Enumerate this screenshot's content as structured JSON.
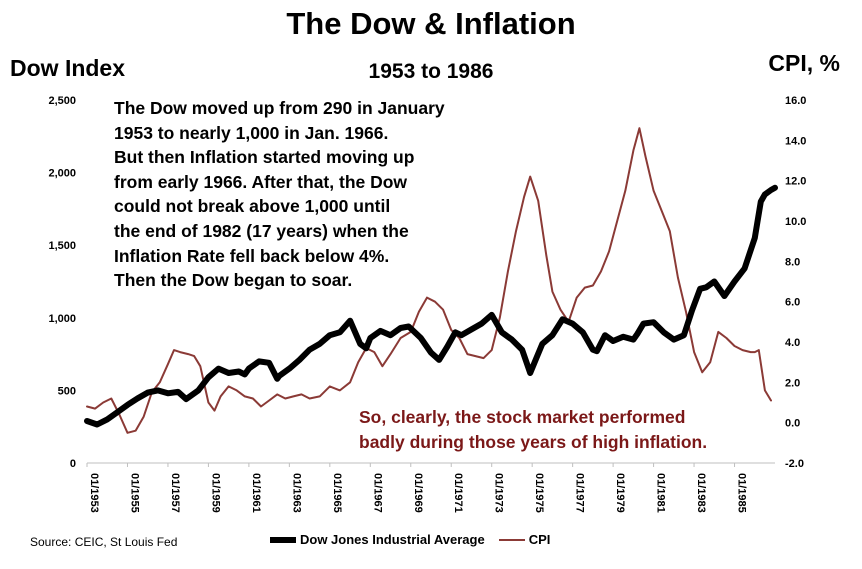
{
  "chart_data": {
    "type": "line",
    "title": "The Dow & Inflation",
    "subtitle": "1953 to 1986",
    "ylabel_left": "Dow Index",
    "ylabel_right": "CPI, %",
    "ylim_left": [
      0,
      2500
    ],
    "ylim_right": [
      -2.0,
      16.0
    ],
    "yticks_left": [
      "2,500",
      "2,000",
      "1,500",
      "1,000",
      "500",
      "0"
    ],
    "yticks_right": [
      "16.0",
      "14.0",
      "12.0",
      "10.0",
      "8.0",
      "6.0",
      "4.0",
      "2.0",
      "0.0",
      "-2.0"
    ],
    "xticks": [
      "01/1953",
      "01/1955",
      "01/1957",
      "01/1959",
      "01/1961",
      "01/1963",
      "01/1965",
      "01/1967",
      "01/1969",
      "01/1971",
      "01/1973",
      "01/1975",
      "01/1977",
      "01/1979",
      "01/1981",
      "01/1983",
      "01/1985"
    ],
    "xlim": [
      1953.0,
      1987.0
    ],
    "grid": false,
    "legend": "bottom",
    "series": [
      {
        "name": "Dow Jones Industrial Average",
        "axis": "left",
        "color": "#000000",
        "x": [
          1953.0,
          1953.5,
          1954.0,
          1954.5,
          1955.0,
          1955.5,
          1956.0,
          1956.5,
          1957.0,
          1957.5,
          1957.9,
          1958.5,
          1959.0,
          1959.5,
          1960.0,
          1960.5,
          1960.8,
          1961.0,
          1961.5,
          1962.0,
          1962.4,
          1962.5,
          1963.0,
          1963.5,
          1964.0,
          1964.5,
          1965.0,
          1965.5,
          1966.0,
          1966.5,
          1966.8,
          1967.0,
          1967.5,
          1968.0,
          1968.5,
          1968.9,
          1969.5,
          1970.0,
          1970.4,
          1970.8,
          1971.2,
          1971.5,
          1972.0,
          1972.5,
          1973.0,
          1973.5,
          1974.0,
          1974.5,
          1974.9,
          1975.2,
          1975.5,
          1976.0,
          1976.5,
          1977.0,
          1977.5,
          1978.0,
          1978.2,
          1978.6,
          1979.0,
          1979.5,
          1980.0,
          1980.2,
          1980.5,
          1981.0,
          1981.5,
          1982.0,
          1982.5,
          1982.9,
          1983.3,
          1983.6,
          1984.0,
          1984.5,
          1985.0,
          1985.5,
          1986.0,
          1986.3,
          1986.5,
          1986.8,
          1987.0
        ],
        "values": [
          289,
          265,
          300,
          350,
          400,
          445,
          485,
          500,
          480,
          490,
          440,
          500,
          590,
          650,
          620,
          630,
          610,
          650,
          700,
          690,
          580,
          600,
          650,
          710,
          780,
          820,
          880,
          900,
          980,
          820,
          790,
          860,
          910,
          880,
          930,
          940,
          860,
          760,
          710,
          800,
          900,
          880,
          920,
          960,
          1020,
          900,
          850,
          780,
          620,
          720,
          820,
          880,
          990,
          960,
          900,
          780,
          770,
          880,
          840,
          870,
          850,
          890,
          960,
          970,
          900,
          850,
          880,
          1050,
          1200,
          1210,
          1250,
          1150,
          1250,
          1340,
          1550,
          1800,
          1850,
          1880,
          1895
        ]
      },
      {
        "name": "CPI",
        "axis": "right",
        "color": "#8b3a36",
        "x": [
          1953.0,
          1953.4,
          1953.8,
          1954.2,
          1954.6,
          1955.0,
          1955.4,
          1955.8,
          1956.2,
          1956.6,
          1957.0,
          1957.3,
          1957.6,
          1958.0,
          1958.3,
          1958.6,
          1959.0,
          1959.3,
          1959.6,
          1960.0,
          1960.4,
          1960.8,
          1961.2,
          1961.6,
          1962.0,
          1962.4,
          1962.8,
          1963.2,
          1963.6,
          1964.0,
          1964.5,
          1965.0,
          1965.5,
          1966.0,
          1966.4,
          1966.8,
          1967.2,
          1967.6,
          1968.0,
          1968.5,
          1969.0,
          1969.4,
          1969.8,
          1970.2,
          1970.6,
          1971.0,
          1971.4,
          1971.8,
          1972.2,
          1972.6,
          1973.0,
          1973.4,
          1973.8,
          1974.2,
          1974.6,
          1974.9,
          1975.3,
          1975.7,
          1976.0,
          1976.4,
          1976.8,
          1977.2,
          1977.6,
          1978.0,
          1978.4,
          1978.8,
          1979.2,
          1979.6,
          1980.0,
          1980.3,
          1980.6,
          1981.0,
          1981.4,
          1981.8,
          1982.2,
          1982.6,
          1983.0,
          1983.4,
          1983.8,
          1984.2,
          1984.6,
          1985.0,
          1985.4,
          1985.8,
          1986.0,
          1986.2,
          1986.5,
          1986.8
        ],
        "values": [
          0.8,
          0.7,
          1.0,
          1.2,
          0.4,
          -0.5,
          -0.4,
          0.3,
          1.5,
          2.0,
          2.9,
          3.6,
          3.5,
          3.4,
          3.3,
          2.8,
          1.0,
          0.6,
          1.3,
          1.8,
          1.6,
          1.3,
          1.2,
          0.8,
          1.1,
          1.4,
          1.2,
          1.3,
          1.4,
          1.2,
          1.3,
          1.8,
          1.6,
          2.0,
          3.0,
          3.7,
          3.5,
          2.8,
          3.4,
          4.2,
          4.5,
          5.5,
          6.2,
          6.0,
          5.6,
          4.6,
          4.2,
          3.4,
          3.3,
          3.2,
          3.6,
          5.2,
          7.5,
          9.5,
          11.2,
          12.2,
          11.0,
          8.3,
          6.5,
          5.6,
          5.0,
          6.2,
          6.7,
          6.8,
          7.5,
          8.5,
          10.0,
          11.5,
          13.5,
          14.6,
          13.2,
          11.5,
          10.5,
          9.5,
          7.2,
          5.5,
          3.5,
          2.5,
          3.0,
          4.5,
          4.2,
          3.8,
          3.6,
          3.5,
          3.5,
          3.6,
          1.6,
          1.1
        ]
      }
    ],
    "annotations": [
      {
        "lines": [
          "The Dow moved up from 290 in January",
          "1953 to nearly 1,000 in Jan. 1966.",
          "But then Inflation started moving up",
          "from early 1966.  After that, the Dow",
          "could not break above 1,000 until",
          "the end of 1982 (17 years) when the",
          "Inflation Rate fell back below 4%.",
          "Then the Dow began to soar."
        ],
        "color": "#000000"
      },
      {
        "lines": [
          "So, clearly, the stock market performed",
          "badly during those years of high inflation."
        ],
        "color": "#7b1818"
      }
    ],
    "source": "Source: CEIC, St Louis Fed"
  }
}
